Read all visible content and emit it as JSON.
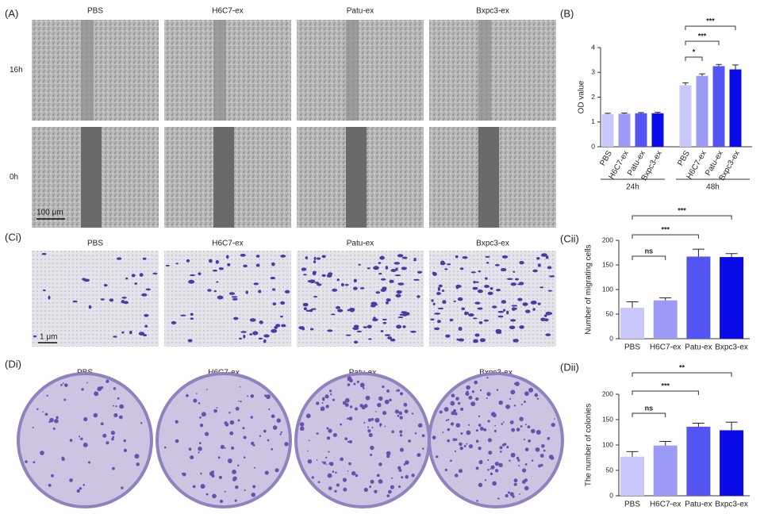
{
  "panels": {
    "A": {
      "label": "(A)",
      "columns": [
        "PBS",
        "H6C7-ex",
        "Patu-ex",
        "Bxpc3-ex"
      ],
      "rows": [
        "16h",
        "0h"
      ],
      "scale_bar": "100 μm"
    },
    "B": {
      "label": "(B)"
    },
    "Ci": {
      "label": "(Ci)",
      "columns": [
        "PBS",
        "H6C7-ex",
        "Patu-ex",
        "Bxpc3-ex"
      ],
      "scale_bar": "1 μm"
    },
    "Cii": {
      "label": "(Cii)"
    },
    "Di": {
      "label": "(Di)",
      "columns": [
        "PBS",
        "H6C7-ex",
        "Patu-ex",
        "Bxpc3-ex"
      ]
    },
    "Dii": {
      "label": "(Dii)"
    }
  },
  "chart_data": [
    {
      "type": "bar",
      "ylabel": "OD value",
      "groups": [
        "24h",
        "48h"
      ],
      "series": [
        {
          "name": "PBS",
          "color": "#c8c8fb",
          "values": [
            1.32,
            2.48
          ],
          "errors": [
            0.03,
            0.1
          ]
        },
        {
          "name": "H6C7-ex",
          "color": "#9c9cf6",
          "values": [
            1.33,
            2.86
          ],
          "errors": [
            0.03,
            0.08
          ]
        },
        {
          "name": "Patu-ex",
          "color": "#5454f3",
          "values": [
            1.35,
            3.25
          ],
          "errors": [
            0.03,
            0.07
          ]
        },
        {
          "name": "Bxpc3-ex",
          "color": "#0b0bea",
          "values": [
            1.35,
            3.12
          ],
          "errors": [
            0.04,
            0.18
          ]
        }
      ],
      "ylim": [
        0,
        4
      ],
      "yticks": [
        0,
        1,
        2,
        3,
        4
      ],
      "annotations": [
        {
          "label": "*"
        },
        {
          "label": "***"
        },
        {
          "label": "***"
        }
      ]
    },
    {
      "type": "bar",
      "ylabel": "Number of migrating cells",
      "categories": [
        "PBS",
        "H6C7-ex",
        "Patu-ex",
        "Bxpc3-ex"
      ],
      "values": [
        63,
        78,
        167,
        166
      ],
      "errors": [
        12,
        5,
        15,
        7
      ],
      "colors": [
        "#c8c8fb",
        "#9c9cf6",
        "#5454f3",
        "#0b0bea"
      ],
      "ylim": [
        0,
        200
      ],
      "yticks": [
        0,
        50,
        100,
        150,
        200
      ],
      "annotations": [
        {
          "label": "ns"
        },
        {
          "label": "***"
        },
        {
          "label": "***"
        }
      ]
    },
    {
      "type": "bar",
      "ylabel": "The number of colonies",
      "categories": [
        "PBS",
        "H6C7-ex",
        "Patu-ex",
        "Bxpc3-ex"
      ],
      "values": [
        77,
        99,
        136,
        129
      ],
      "errors": [
        10,
        8,
        7,
        16
      ],
      "colors": [
        "#c8c8fb",
        "#9c9cf6",
        "#5454f3",
        "#0b0bea"
      ],
      "ylim": [
        0,
        200
      ],
      "yticks": [
        0,
        50,
        100,
        150,
        200
      ],
      "annotations": [
        {
          "label": "ns"
        },
        {
          "label": "***"
        },
        {
          "label": "**"
        }
      ]
    }
  ]
}
